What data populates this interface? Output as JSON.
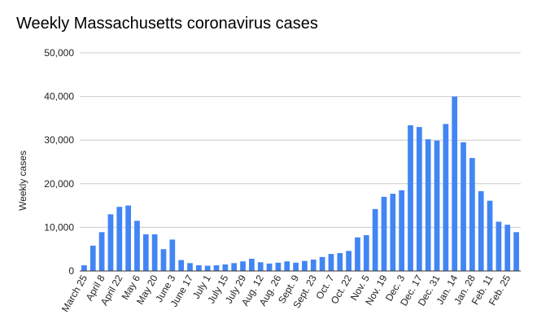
{
  "chart_data": {
    "type": "bar",
    "title": "Weekly Massachusetts coronavirus cases",
    "xlabel": "",
    "ylabel": "Weekly cases",
    "ylim": [
      0,
      50000
    ],
    "yticks": [
      "0",
      "10,000",
      "20,000",
      "30,000",
      "40,000",
      "50,000"
    ],
    "grid": true,
    "legend": "none",
    "bar_color": "#4285f4",
    "x_tick_labels": [
      "March 25",
      "April 8",
      "April 22",
      "May 6",
      "May 20",
      "June 3",
      "June 17",
      "July 1",
      "July 15",
      "July 29",
      "Aug. 12",
      "Aug. 26",
      "Sept. 9",
      "Sept. 23",
      "Oct. 7",
      "Oct. 22",
      "Nov. 5",
      "Nov. 19",
      "Dec. 3",
      "Dec. 17",
      "Dec. 31",
      "Jan. 14",
      "Jan. 28",
      "Feb. 11",
      "Feb. 25"
    ],
    "values": [
      1300,
      5800,
      8900,
      13000,
      14700,
      15000,
      11500,
      8400,
      8400,
      5000,
      7200,
      2500,
      1800,
      1300,
      1200,
      1300,
      1500,
      1800,
      2200,
      2800,
      2000,
      1700,
      1900,
      2200,
      1900,
      2300,
      2600,
      3200,
      3900,
      4100,
      4600,
      7700,
      8200,
      14200,
      17000,
      17700,
      18500,
      33400,
      33000,
      30200,
      29900,
      33700,
      40000,
      29500,
      25900,
      18300,
      16100,
      11300,
      10600,
      8900
    ]
  }
}
